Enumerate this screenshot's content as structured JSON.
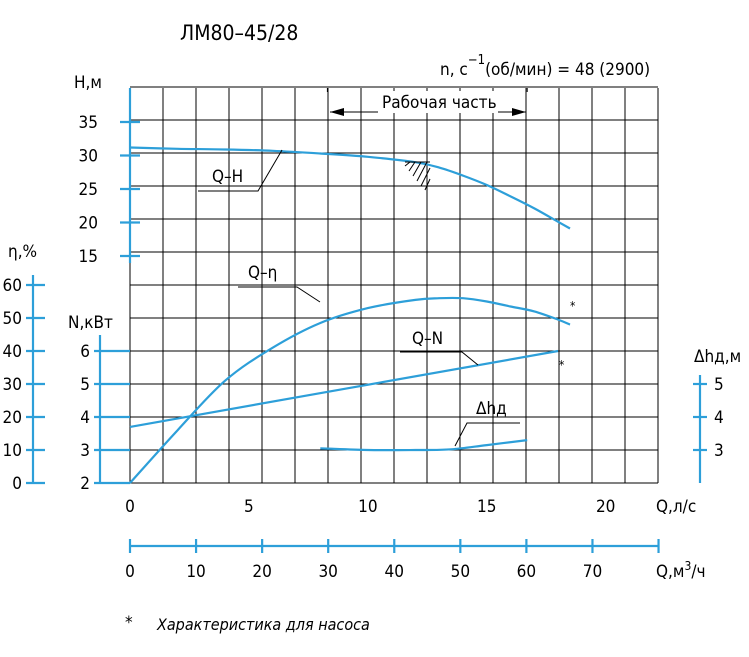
{
  "title": "ЛМ80–45/28",
  "speed_label": "n, с⁻¹(об/мин) = 48 (2900)",
  "speed_label_parts": {
    "n_c": "n, с",
    "exp": "−1",
    "rest": "(об/мин) = 48 (2900)"
  },
  "working_zone_label": "Рабочая часть",
  "footnote_marker": "*",
  "footnote_text": "Характеристика для насоса",
  "colors": {
    "curve": "#2d9fd9",
    "grid": "#000000",
    "text": "#000000"
  },
  "axes": {
    "head": {
      "label": "Н,м",
      "ticks": [
        "15",
        "20",
        "25",
        "30",
        "35"
      ]
    },
    "efficiency": {
      "label": "η,%",
      "ticks": [
        "0",
        "10",
        "20",
        "30",
        "40",
        "50",
        "60"
      ]
    },
    "power": {
      "label": "N,кВт",
      "ticks": [
        "2",
        "3",
        "4",
        "5",
        "6"
      ]
    },
    "npsh": {
      "label": "Δhд,м",
      "ticks": [
        "3",
        "4",
        "5"
      ]
    },
    "flow_ls": {
      "label": "Q,л/с",
      "ticks": [
        "0",
        "5",
        "10",
        "15",
        "20"
      ]
    },
    "flow_m3h": {
      "label": "Q,м³/ч",
      "label_parts": {
        "main": "Q,м",
        "sup": "3",
        "rest": "/ч"
      },
      "ticks": [
        "0",
        "10",
        "20",
        "30",
        "40",
        "50",
        "60",
        "70"
      ]
    }
  },
  "chart_data": {
    "type": "line",
    "title": "ЛМ80–45/28",
    "xlabel": "Q,л/с",
    "xlim": [
      0,
      22.2
    ],
    "x2label": "Q,м³/ч",
    "working_range_ls": [
      8.3,
      16.7
    ],
    "grid": true,
    "series": [
      {
        "name": "Q–H",
        "axis": "head",
        "unit": "м",
        "x": [
          0,
          2,
          4,
          6,
          8,
          10,
          12,
          13,
          14,
          15,
          16,
          17,
          18,
          18.5
        ],
        "y": [
          31.2,
          31.0,
          30.9,
          30.7,
          30.3,
          29.8,
          29.0,
          28.2,
          27.0,
          25.6,
          23.9,
          22.1,
          20.1,
          19.1
        ]
      },
      {
        "name": "Q–η",
        "axis": "efficiency",
        "unit": "%",
        "x": [
          0,
          2,
          4,
          6,
          8,
          10,
          12,
          13,
          14,
          15,
          16,
          17,
          18,
          18.5
        ],
        "y": [
          0,
          16,
          31,
          41,
          48.5,
          53,
          55.5,
          56,
          56,
          55,
          53.5,
          52,
          49.5,
          48
        ]
      },
      {
        "name": "Q–N",
        "axis": "power",
        "unit": "кВт",
        "x": [
          0,
          18
        ],
        "y": [
          3.7,
          6.0
        ]
      },
      {
        "name": "Δhд",
        "axis": "npsh",
        "unit": "м",
        "x": [
          8,
          10,
          12,
          13.5,
          15,
          16.7
        ],
        "y": [
          3.05,
          3.0,
          3.0,
          3.02,
          3.15,
          3.3
        ]
      }
    ]
  }
}
